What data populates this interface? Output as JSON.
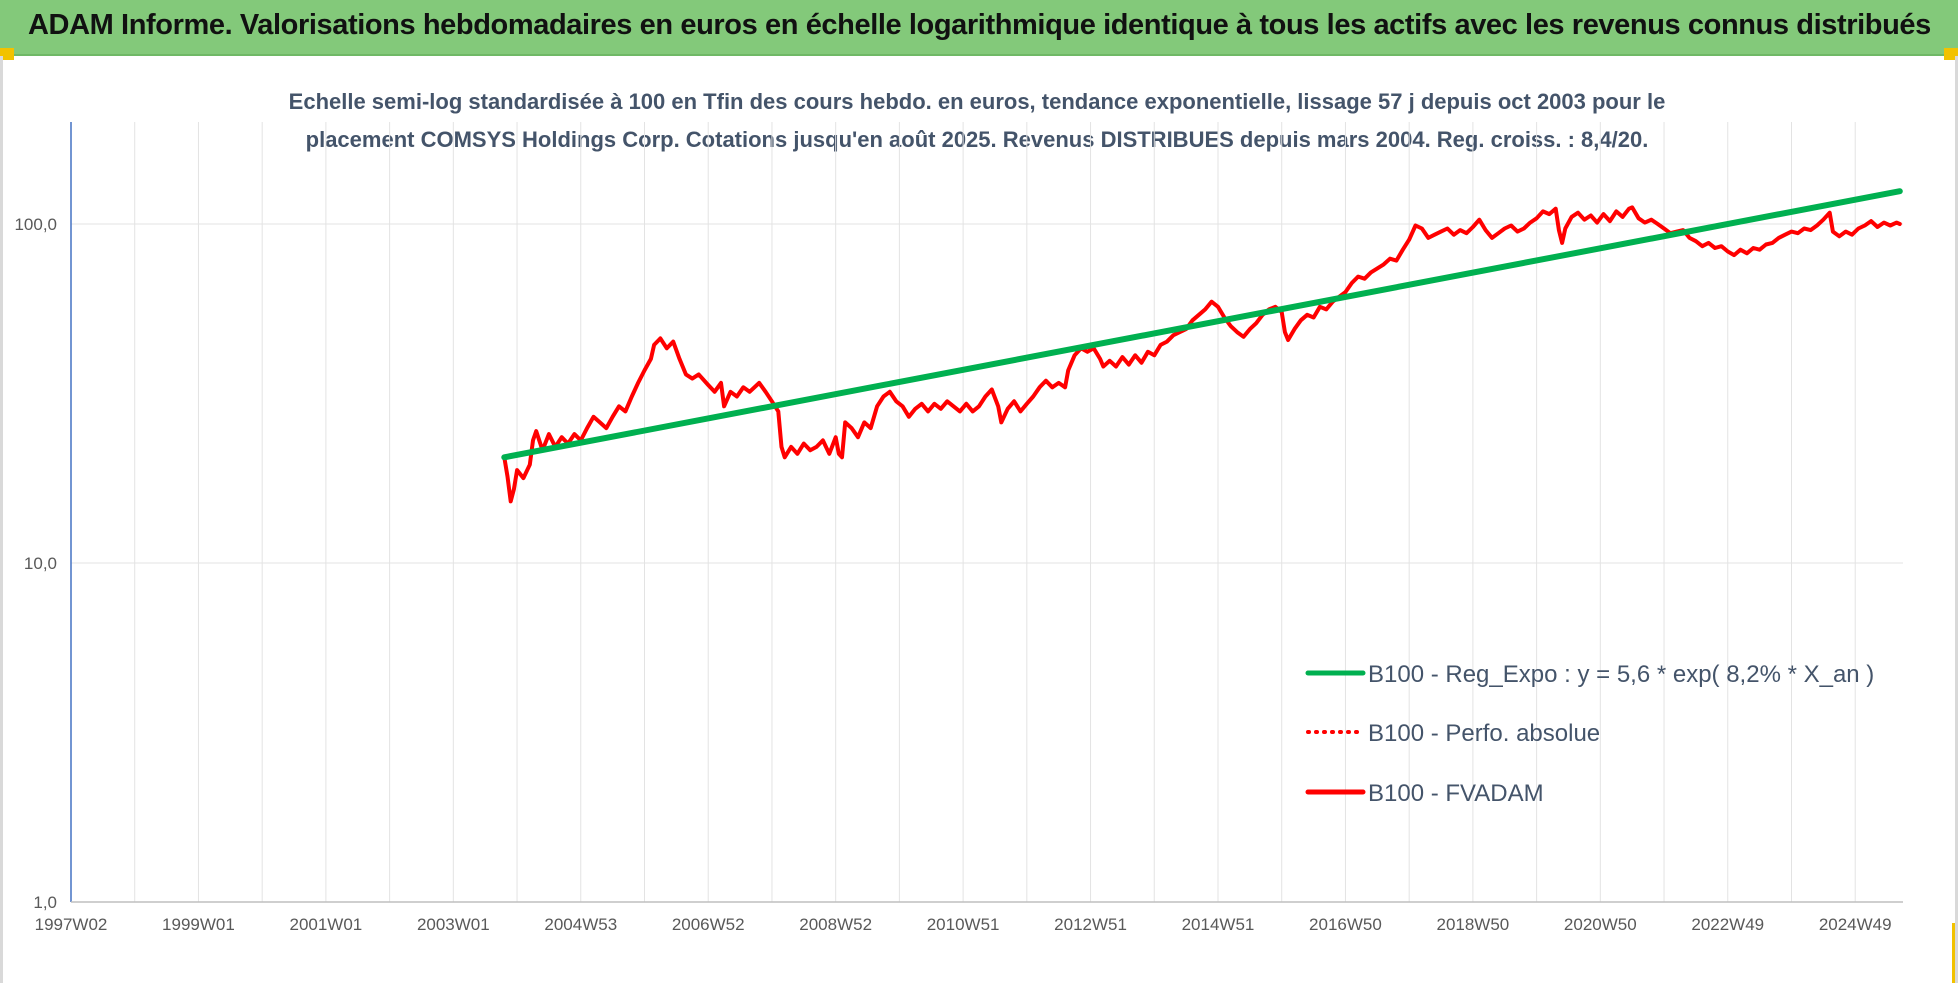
{
  "page": {
    "banner_title": "ADAM Informe. Valorisations hebdomadaires en euros en échelle logarithmique identique à tous les actifs avec les revenus connus distribués",
    "banner_color": "#83c97a",
    "corner_color": "#f2c200"
  },
  "chart_data": {
    "type": "line",
    "title_lines": [
      "Echelle semi-log standardisée à 100 en Tfin des cours hebdo. en euros, tendance exponentielle, lissage 57 j depuis oct 2003 pour le",
      "placement COMSYS Holdings Corp. Cotations jusqu'en août 2025. Revenus DISTRIBUES depuis mars 2004. Reg. croiss. : 8,4/20."
    ],
    "y_scale": "log",
    "ylim": [
      1,
      200
    ],
    "y_ticks": [
      {
        "value": 1,
        "label": "1,0"
      },
      {
        "value": 10,
        "label": "10,0"
      },
      {
        "value": 100,
        "label": "100,0"
      }
    ],
    "xlim": [
      1997.0,
      2025.75
    ],
    "x_ticks": [
      {
        "value": 1997.0,
        "label": "1997W02"
      },
      {
        "value": 1999.0,
        "label": "1999W01"
      },
      {
        "value": 2001.0,
        "label": "2001W01"
      },
      {
        "value": 2003.0,
        "label": "2003W01"
      },
      {
        "value": 2005.0,
        "label": "2004W53"
      },
      {
        "value": 2007.0,
        "label": "2006W52"
      },
      {
        "value": 2009.0,
        "label": "2008W52"
      },
      {
        "value": 2011.0,
        "label": "2010W51"
      },
      {
        "value": 2013.0,
        "label": "2012W51"
      },
      {
        "value": 2015.0,
        "label": "2014W51"
      },
      {
        "value": 2017.0,
        "label": "2016W50"
      },
      {
        "value": 2019.0,
        "label": "2018W50"
      },
      {
        "value": 2021.0,
        "label": "2020W50"
      },
      {
        "value": 2023.0,
        "label": "2022W49"
      },
      {
        "value": 2025.0,
        "label": "2024W49"
      }
    ],
    "grid": true,
    "legend_position": "bottom-right",
    "series": [
      {
        "name": "B100 - Reg_Expo : y = 5,6 * exp( 8,2% *  X_an )",
        "color": "#00b050",
        "style": "solid",
        "points": [
          [
            2003.8,
            20.5
          ],
          [
            2025.7,
            125
          ]
        ]
      },
      {
        "name": "B100 - Perfo. absolue",
        "color": "#ff0000",
        "style": "dotted",
        "points": []
      },
      {
        "name": "B100 - FVADAM",
        "color": "#ff0000",
        "style": "solid",
        "points": [
          [
            2003.8,
            20.5
          ],
          [
            2003.85,
            18
          ],
          [
            2003.9,
            15.2
          ],
          [
            2003.95,
            16.5
          ],
          [
            2004.0,
            18.8
          ],
          [
            2004.1,
            17.8
          ],
          [
            2004.2,
            19.5
          ],
          [
            2004.25,
            23
          ],
          [
            2004.3,
            24.5
          ],
          [
            2004.4,
            21.5
          ],
          [
            2004.5,
            24
          ],
          [
            2004.6,
            22
          ],
          [
            2004.7,
            23.5
          ],
          [
            2004.8,
            22.5
          ],
          [
            2004.9,
            24
          ],
          [
            2005.0,
            23
          ],
          [
            2005.1,
            25
          ],
          [
            2005.2,
            27
          ],
          [
            2005.3,
            26
          ],
          [
            2005.4,
            25
          ],
          [
            2005.5,
            27
          ],
          [
            2005.6,
            29
          ],
          [
            2005.7,
            28
          ],
          [
            2005.8,
            31
          ],
          [
            2005.9,
            34
          ],
          [
            2006.0,
            37
          ],
          [
            2006.1,
            40
          ],
          [
            2006.15,
            44
          ],
          [
            2006.25,
            46
          ],
          [
            2006.35,
            43
          ],
          [
            2006.45,
            45
          ],
          [
            2006.55,
            40
          ],
          [
            2006.65,
            36
          ],
          [
            2006.75,
            35
          ],
          [
            2006.85,
            36
          ],
          [
            2007.0,
            33.5
          ],
          [
            2007.1,
            32
          ],
          [
            2007.2,
            34
          ],
          [
            2007.25,
            29
          ],
          [
            2007.35,
            32
          ],
          [
            2007.45,
            31
          ],
          [
            2007.55,
            33
          ],
          [
            2007.65,
            32
          ],
          [
            2007.8,
            34
          ],
          [
            2007.9,
            32
          ],
          [
            2008.0,
            30
          ],
          [
            2008.1,
            28
          ],
          [
            2008.15,
            22
          ],
          [
            2008.2,
            20.5
          ],
          [
            2008.3,
            22
          ],
          [
            2008.4,
            21
          ],
          [
            2008.5,
            22.5
          ],
          [
            2008.6,
            21.5
          ],
          [
            2008.7,
            22
          ],
          [
            2008.8,
            23
          ],
          [
            2008.9,
            21
          ],
          [
            2009.0,
            23.5
          ],
          [
            2009.05,
            21
          ],
          [
            2009.1,
            20.5
          ],
          [
            2009.15,
            26
          ],
          [
            2009.25,
            25
          ],
          [
            2009.35,
            23.5
          ],
          [
            2009.45,
            26
          ],
          [
            2009.55,
            25
          ],
          [
            2009.65,
            29
          ],
          [
            2009.75,
            31
          ],
          [
            2009.85,
            32
          ],
          [
            2009.95,
            30
          ],
          [
            2010.05,
            29
          ],
          [
            2010.15,
            27
          ],
          [
            2010.25,
            28.5
          ],
          [
            2010.35,
            29.5
          ],
          [
            2010.45,
            28
          ],
          [
            2010.55,
            29.5
          ],
          [
            2010.65,
            28.5
          ],
          [
            2010.75,
            30
          ],
          [
            2010.85,
            29
          ],
          [
            2010.95,
            28
          ],
          [
            2011.05,
            29.5
          ],
          [
            2011.15,
            28
          ],
          [
            2011.25,
            29
          ],
          [
            2011.35,
            31
          ],
          [
            2011.45,
            32.5
          ],
          [
            2011.55,
            29
          ],
          [
            2011.6,
            26
          ],
          [
            2011.7,
            28.5
          ],
          [
            2011.8,
            30
          ],
          [
            2011.9,
            28
          ],
          [
            2012.0,
            29.5
          ],
          [
            2012.1,
            31
          ],
          [
            2012.2,
            33
          ],
          [
            2012.3,
            34.5
          ],
          [
            2012.4,
            33
          ],
          [
            2012.5,
            34
          ],
          [
            2012.6,
            33
          ],
          [
            2012.65,
            37
          ],
          [
            2012.75,
            41
          ],
          [
            2012.85,
            43
          ],
          [
            2012.95,
            42
          ],
          [
            2013.05,
            43
          ],
          [
            2013.15,
            40
          ],
          [
            2013.2,
            38
          ],
          [
            2013.3,
            39.5
          ],
          [
            2013.4,
            38
          ],
          [
            2013.5,
            40.5
          ],
          [
            2013.6,
            38.5
          ],
          [
            2013.7,
            41
          ],
          [
            2013.8,
            39
          ],
          [
            2013.9,
            42
          ],
          [
            2014.0,
            41
          ],
          [
            2014.1,
            44
          ],
          [
            2014.2,
            45
          ],
          [
            2014.3,
            47
          ],
          [
            2014.4,
            48
          ],
          [
            2014.5,
            49
          ],
          [
            2014.6,
            52
          ],
          [
            2014.7,
            54
          ],
          [
            2014.8,
            56
          ],
          [
            2014.9,
            59
          ],
          [
            2015.0,
            57
          ],
          [
            2015.1,
            53
          ],
          [
            2015.2,
            50
          ],
          [
            2015.3,
            48
          ],
          [
            2015.4,
            46.5
          ],
          [
            2015.5,
            49
          ],
          [
            2015.6,
            51
          ],
          [
            2015.7,
            54
          ],
          [
            2015.8,
            56
          ],
          [
            2015.9,
            57
          ],
          [
            2016.0,
            55
          ],
          [
            2016.05,
            48
          ],
          [
            2016.1,
            45.5
          ],
          [
            2016.2,
            49
          ],
          [
            2016.3,
            52
          ],
          [
            2016.4,
            54
          ],
          [
            2016.5,
            53
          ],
          [
            2016.6,
            57
          ],
          [
            2016.7,
            56
          ],
          [
            2016.8,
            59
          ],
          [
            2016.9,
            61
          ],
          [
            2017.0,
            63
          ],
          [
            2017.1,
            67
          ],
          [
            2017.2,
            70
          ],
          [
            2017.3,
            69
          ],
          [
            2017.4,
            72
          ],
          [
            2017.5,
            74
          ],
          [
            2017.6,
            76
          ],
          [
            2017.7,
            79
          ],
          [
            2017.8,
            78
          ],
          [
            2017.9,
            84
          ],
          [
            2018.0,
            90
          ],
          [
            2018.1,
            99
          ],
          [
            2018.2,
            97
          ],
          [
            2018.3,
            91
          ],
          [
            2018.4,
            93
          ],
          [
            2018.5,
            95
          ],
          [
            2018.6,
            97
          ],
          [
            2018.7,
            93
          ],
          [
            2018.8,
            96
          ],
          [
            2018.9,
            94
          ],
          [
            2019.0,
            98
          ],
          [
            2019.1,
            103
          ],
          [
            2019.2,
            96
          ],
          [
            2019.3,
            91
          ],
          [
            2019.4,
            94
          ],
          [
            2019.5,
            97
          ],
          [
            2019.6,
            99
          ],
          [
            2019.7,
            95
          ],
          [
            2019.8,
            97
          ],
          [
            2019.9,
            101
          ],
          [
            2020.0,
            104
          ],
          [
            2020.1,
            109
          ],
          [
            2020.2,
            107
          ],
          [
            2020.3,
            111
          ],
          [
            2020.35,
            96
          ],
          [
            2020.4,
            88
          ],
          [
            2020.45,
            97
          ],
          [
            2020.55,
            105
          ],
          [
            2020.65,
            108
          ],
          [
            2020.75,
            103
          ],
          [
            2020.85,
            106
          ],
          [
            2020.95,
            101
          ],
          [
            2021.05,
            107
          ],
          [
            2021.15,
            102
          ],
          [
            2021.25,
            109
          ],
          [
            2021.35,
            105
          ],
          [
            2021.45,
            111
          ],
          [
            2021.5,
            112
          ],
          [
            2021.6,
            104
          ],
          [
            2021.7,
            101
          ],
          [
            2021.8,
            103
          ],
          [
            2021.9,
            100
          ],
          [
            2022.0,
            97
          ],
          [
            2022.1,
            94
          ],
          [
            2022.2,
            95
          ],
          [
            2022.3,
            96
          ],
          [
            2022.4,
            91
          ],
          [
            2022.5,
            89
          ],
          [
            2022.6,
            86
          ],
          [
            2022.7,
            88
          ],
          [
            2022.8,
            85
          ],
          [
            2022.9,
            86
          ],
          [
            2023.0,
            83
          ],
          [
            2023.1,
            81
          ],
          [
            2023.2,
            84
          ],
          [
            2023.3,
            82
          ],
          [
            2023.4,
            85
          ],
          [
            2023.5,
            84
          ],
          [
            2023.6,
            87
          ],
          [
            2023.7,
            88
          ],
          [
            2023.8,
            91
          ],
          [
            2023.9,
            93
          ],
          [
            2024.0,
            95
          ],
          [
            2024.1,
            94
          ],
          [
            2024.2,
            97
          ],
          [
            2024.3,
            96
          ],
          [
            2024.4,
            99
          ],
          [
            2024.5,
            103
          ],
          [
            2024.6,
            108
          ],
          [
            2024.65,
            95
          ],
          [
            2024.75,
            92
          ],
          [
            2024.85,
            95
          ],
          [
            2024.95,
            93
          ],
          [
            2025.05,
            97
          ],
          [
            2025.15,
            99
          ],
          [
            2025.25,
            102
          ],
          [
            2025.35,
            98
          ],
          [
            2025.45,
            101
          ],
          [
            2025.55,
            99
          ],
          [
            2025.65,
            101
          ],
          [
            2025.7,
            100
          ]
        ]
      }
    ]
  }
}
